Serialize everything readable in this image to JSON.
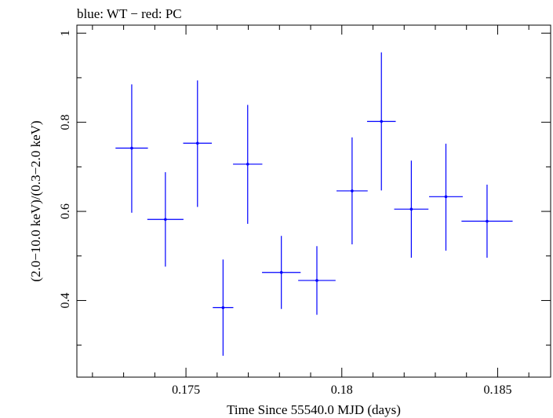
{
  "chart_data": {
    "type": "scatter",
    "title": "blue: WT − red: PC",
    "xlabel": "Time Since 55540.0 MJD (days)",
    "ylabel": "(2.0−10.0 keV)/(0.3−2.0 keV)",
    "xlim": [
      0.1715,
      0.1867
    ],
    "ylim": [
      0.228,
      1.018
    ],
    "x_ticks": [
      0.175,
      0.18,
      0.185
    ],
    "x_tick_labels": [
      "0.175",
      "0.18",
      "0.185"
    ],
    "y_ticks": [
      0.4,
      0.6,
      0.8,
      1.0
    ],
    "y_tick_labels": [
      "0.4",
      "0.6",
      "0.8",
      "1"
    ],
    "grid": false,
    "series": [
      {
        "color": "#0000ff",
        "points": [
          {
            "x": 0.17326,
            "y": 0.742,
            "xerr": 0.00052,
            "yerr_low": 0.145,
            "yerr_high": 0.143
          },
          {
            "x": 0.17434,
            "y": 0.582,
            "xerr": 0.00058,
            "yerr_low": 0.106,
            "yerr_high": 0.106
          },
          {
            "x": 0.17537,
            "y": 0.753,
            "xerr": 0.00046,
            "yerr_low": 0.143,
            "yerr_high": 0.141
          },
          {
            "x": 0.17619,
            "y": 0.384,
            "xerr": 0.00033,
            "yerr_low": 0.108,
            "yerr_high": 0.108
          },
          {
            "x": 0.17698,
            "y": 0.706,
            "xerr": 0.00047,
            "yerr_low": 0.134,
            "yerr_high": 0.133
          },
          {
            "x": 0.17806,
            "y": 0.463,
            "xerr": 0.00062,
            "yerr_low": 0.082,
            "yerr_high": 0.082
          },
          {
            "x": 0.1792,
            "y": 0.445,
            "xerr": 0.0006,
            "yerr_low": 0.077,
            "yerr_high": 0.077
          },
          {
            "x": 0.18033,
            "y": 0.646,
            "xerr": 0.0005,
            "yerr_low": 0.12,
            "yerr_high": 0.12
          },
          {
            "x": 0.18127,
            "y": 0.802,
            "xerr": 0.00046,
            "yerr_low": 0.155,
            "yerr_high": 0.155
          },
          {
            "x": 0.18223,
            "y": 0.605,
            "xerr": 0.00055,
            "yerr_low": 0.109,
            "yerr_high": 0.109
          },
          {
            "x": 0.18334,
            "y": 0.633,
            "xerr": 0.00054,
            "yerr_low": 0.121,
            "yerr_high": 0.119
          },
          {
            "x": 0.18466,
            "y": 0.578,
            "xerr": 0.00082,
            "yerr_low": 0.082,
            "yerr_high": 0.082
          }
        ]
      }
    ]
  }
}
